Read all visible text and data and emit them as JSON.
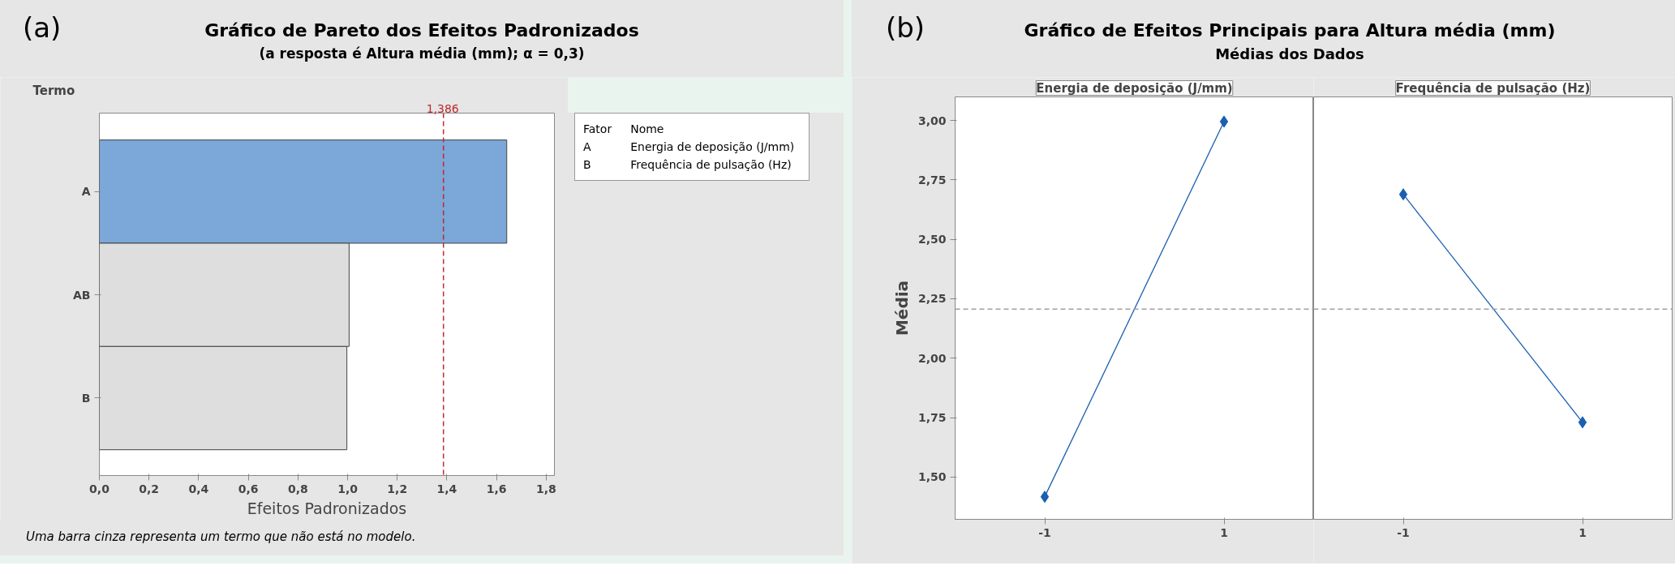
{
  "chart_data": [
    {
      "type": "bar",
      "orientation": "horizontal",
      "title": "Gráfico de Pareto dos Efeitos Padronizados",
      "subtitle": "(a resposta é  Altura média (mm); α = 0,3)",
      "xlabel": "Efeitos Padronizados",
      "ylabel": "Termo",
      "categories": [
        "A",
        "AB",
        "B"
      ],
      "values": [
        1.641,
        1.006,
        0.997
      ],
      "colors": [
        "#7ba7d9",
        "#dedede",
        "#dedede"
      ],
      "xlim": [
        0,
        1.833
      ],
      "xticks": [
        {
          "value": 0,
          "label": "0,0"
        },
        {
          "value": 0.2,
          "label": "0,2"
        },
        {
          "value": 0.4,
          "label": "0,4"
        },
        {
          "value": 0.6,
          "label": "0,6"
        },
        {
          "value": 0.8,
          "label": "0,8"
        },
        {
          "value": 1.0,
          "label": "1,0"
        },
        {
          "value": 1.2,
          "label": "1,2"
        },
        {
          "value": 1.4,
          "label": "1,4"
        },
        {
          "value": 1.6,
          "label": "1,6"
        },
        {
          "value": 1.8,
          "label": "1,8"
        }
      ],
      "ref_lines": [
        {
          "axis": "x",
          "value": 1.386,
          "label": "1,386",
          "color": "#c0282d",
          "line_style": "dashed"
        }
      ],
      "annotations": [
        "(a)",
        "Fator",
        "Nome",
        "A",
        "Energia de deposição (J/mm)",
        "B",
        "Frequência de pulsação (Hz)",
        "Uma barra cinza representa um termo que não está no modelo."
      ],
      "grid": false
    },
    {
      "type": "line",
      "title": "Gráfico de Efeitos Principais para Altura média (mm)",
      "subtitle": "Médias dos Dados",
      "ylabel": "Média",
      "annotations": [
        "(b)",
        "Energia de deposição (J/mm)"
      ],
      "categories": [
        "-1",
        "1"
      ],
      "values": [
        1.417,
        2.995
      ],
      "color": "#1a5fb0",
      "marker": "diamond",
      "ylim": [
        1.322,
        3.099
      ],
      "yticks": [
        {
          "value": 1.5,
          "label": "1,50"
        },
        {
          "value": 1.75,
          "label": "1,75"
        },
        {
          "value": 2.0,
          "label": "2,00"
        },
        {
          "value": 2.25,
          "label": "2,25"
        },
        {
          "value": 2.5,
          "label": "2,50"
        },
        {
          "value": 2.75,
          "label": "2,75"
        },
        {
          "value": 3.0,
          "label": "3,00"
        }
      ],
      "ref_lines": [
        {
          "axis": "y",
          "value": 2.206,
          "color": "#a0a0a0",
          "line_style": "dashed"
        }
      ],
      "grid": false
    },
    {
      "type": "line",
      "annotations": [
        "Frequência de pulsação (Hz)"
      ],
      "categories": [
        "-1",
        "1"
      ],
      "values": [
        2.689,
        1.73
      ],
      "color": "#1a5fb0",
      "marker": "diamond",
      "ylim": [
        1.322,
        3.099
      ],
      "ref_lines": [
        {
          "axis": "y",
          "value": 2.206,
          "color": "#a0a0a0",
          "line_style": "dashed"
        }
      ],
      "grid": false,
      "tick_labels": "x"
    }
  ]
}
